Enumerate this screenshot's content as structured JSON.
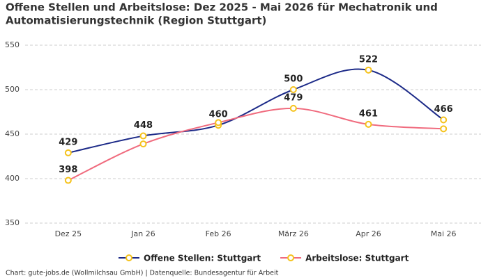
{
  "chart_data": {
    "type": "line",
    "title": [
      "Offene Stellen und Arbeitslose: Dez 2025 - Mai 2026 für Mechatronik und",
      "Automatisierungstechnik (Region Stuttgart)"
    ],
    "categories": [
      "Dez 25",
      "Jan 26",
      "Feb 26",
      "März 26",
      "Apr 26",
      "Mai 26"
    ],
    "series": [
      {
        "name": "Offene Stellen: Stuttgart",
        "color": "#1c2a88",
        "values": [
          429,
          448,
          460,
          500,
          522,
          466
        ]
      },
      {
        "name": "Arbeitslose: Stuttgart",
        "color": "#f06b7e",
        "values": [
          398,
          439,
          463,
          479,
          461,
          456
        ],
        "value_labels": [
          "398",
          null,
          null,
          "479",
          "461",
          null
        ]
      }
    ],
    "marker_color": "#f5c21b",
    "ylim": [
      350,
      550
    ],
    "yticks": [
      350,
      400,
      450,
      500,
      550
    ],
    "grid": true,
    "footer": "Chart: gute-jobs.de (Wollmilchsau GmbH) | Datenquelle: Bundesagentur für Arbeit"
  }
}
